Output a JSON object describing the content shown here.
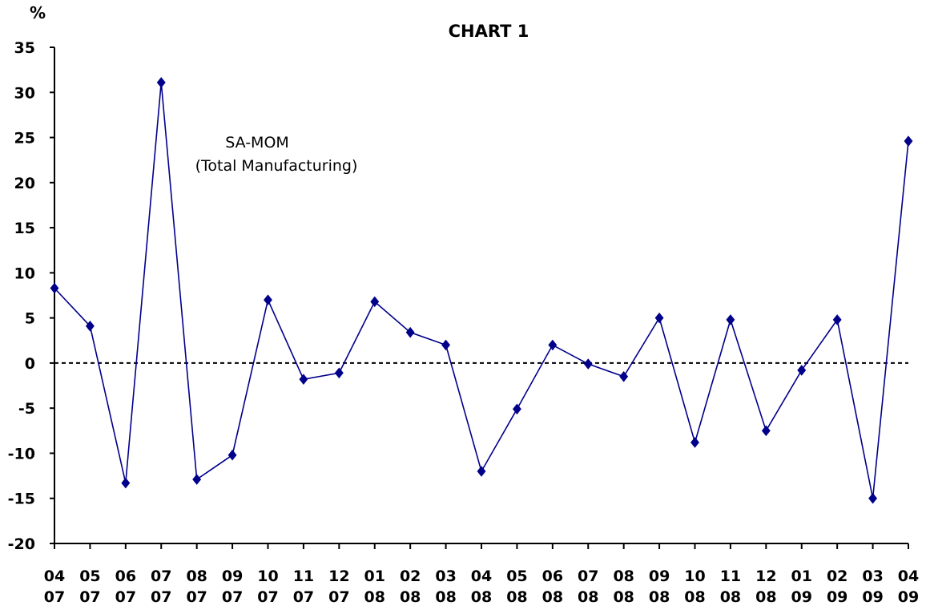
{
  "chart_data": {
    "type": "line",
    "title": "CHART 1",
    "ylabel": "%",
    "xlabel": "",
    "ylim": [
      -20,
      35
    ],
    "y_ticks": [
      35,
      30,
      25,
      20,
      15,
      10,
      5,
      0,
      -5,
      -10,
      -15,
      -20
    ],
    "categories": [
      [
        "04",
        "07"
      ],
      [
        "05",
        "07"
      ],
      [
        "06",
        "07"
      ],
      [
        "07",
        "07"
      ],
      [
        "08",
        "07"
      ],
      [
        "09",
        "07"
      ],
      [
        "10",
        "07"
      ],
      [
        "11",
        "07"
      ],
      [
        "12",
        "07"
      ],
      [
        "01",
        "08"
      ],
      [
        "02",
        "08"
      ],
      [
        "03",
        "08"
      ],
      [
        "04",
        "08"
      ],
      [
        "05",
        "08"
      ],
      [
        "06",
        "08"
      ],
      [
        "07",
        "08"
      ],
      [
        "08",
        "08"
      ],
      [
        "09",
        "08"
      ],
      [
        "10",
        "08"
      ],
      [
        "11",
        "08"
      ],
      [
        "12",
        "08"
      ],
      [
        "01",
        "09"
      ],
      [
        "02",
        "09"
      ],
      [
        "03",
        "09"
      ],
      [
        "04",
        "09"
      ]
    ],
    "series": [
      {
        "name": "SA-MOM (Total Manufacturing)",
        "values": [
          8.3,
          4.1,
          -13.3,
          31.1,
          -12.9,
          -10.2,
          7.0,
          -1.8,
          -1.1,
          6.8,
          3.4,
          2.0,
          -12.0,
          -5.1,
          2.0,
          -0.1,
          -1.5,
          5.0,
          -8.8,
          4.8,
          -7.5,
          -0.8,
          4.8,
          -15.0,
          24.6
        ]
      }
    ],
    "annotations": [
      {
        "line1": "SA-MOM",
        "line2": "(Total Manufacturing)"
      }
    ],
    "reference_line": {
      "y": 0,
      "style": "dashed"
    },
    "grid": false,
    "legend": "none",
    "colors": {
      "series": "#00008B",
      "axis": "#000000"
    }
  }
}
